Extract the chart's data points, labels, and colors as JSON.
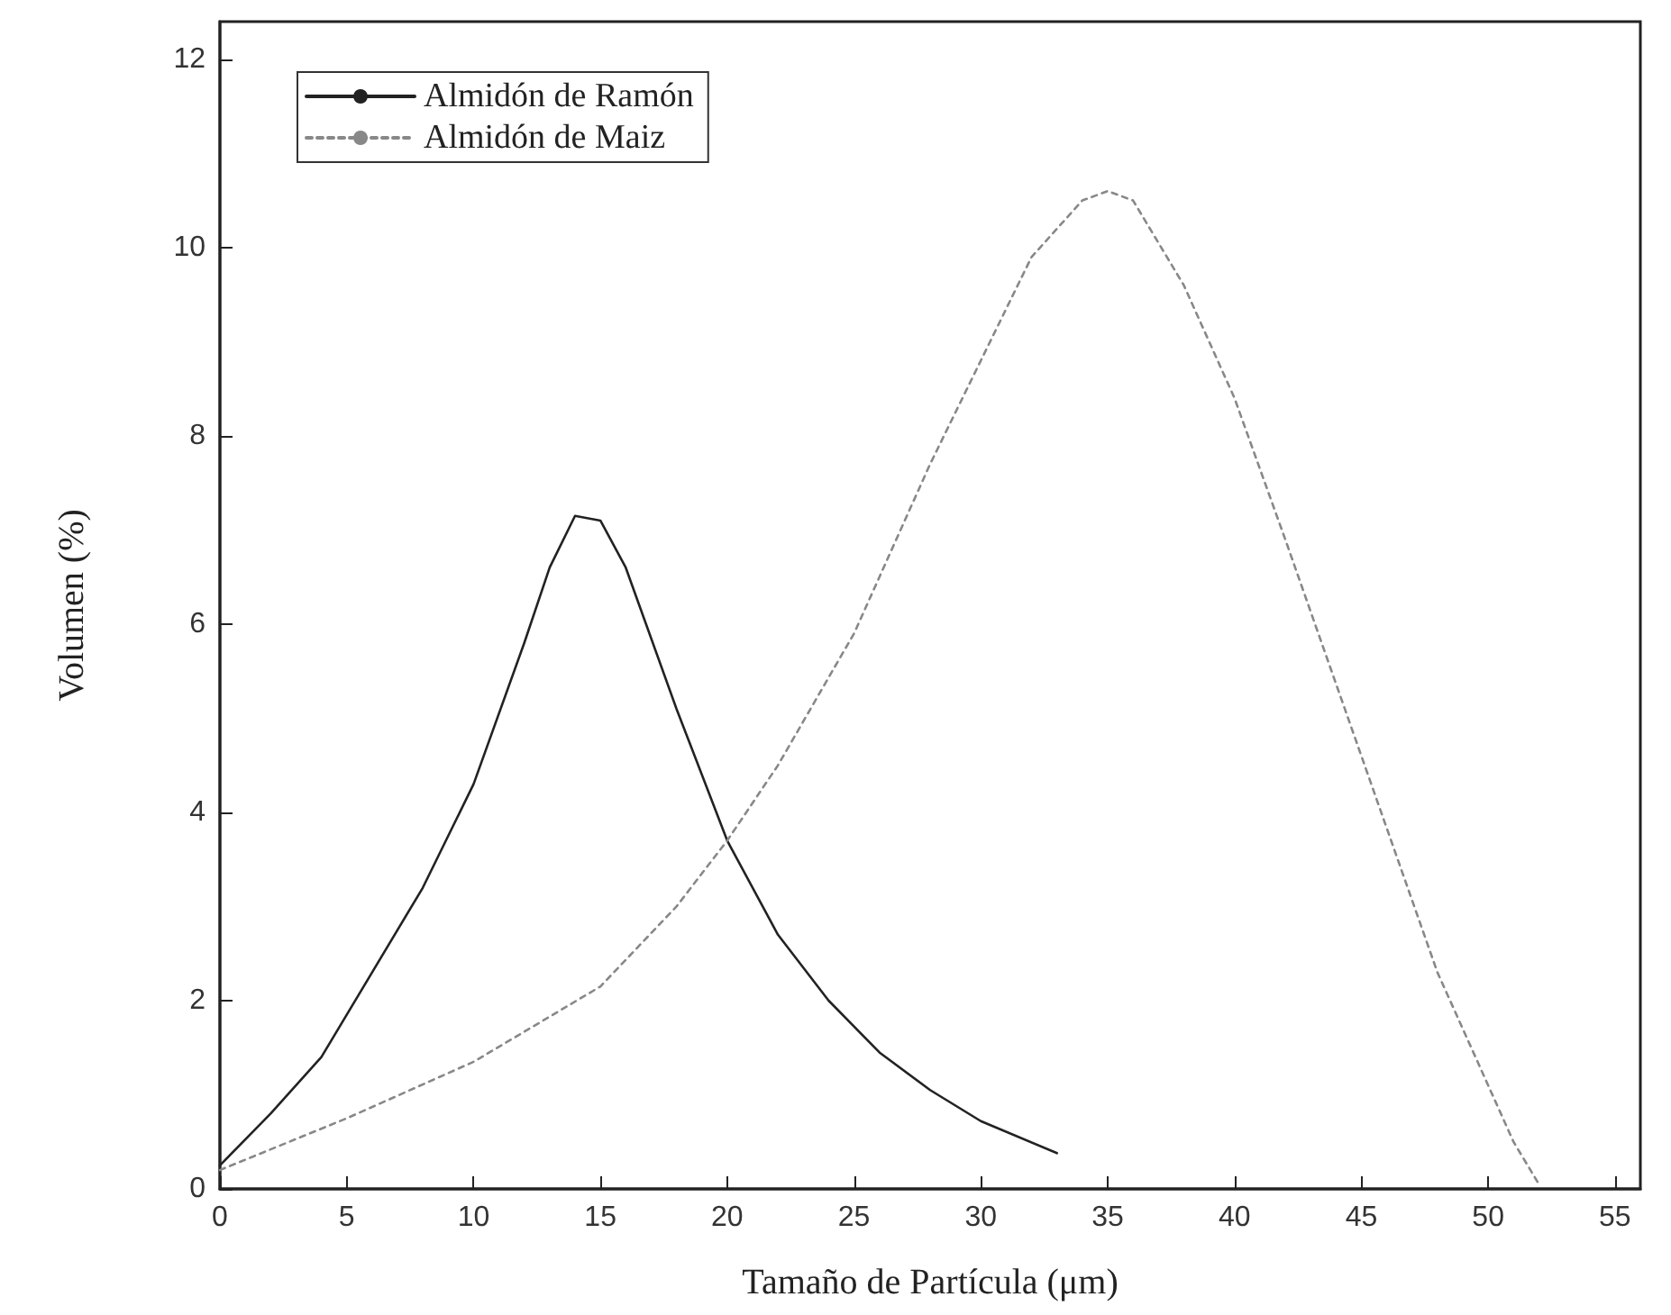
{
  "chart_data": {
    "type": "line",
    "xlabel": "Tamaño de Partícula (μm)",
    "ylabel": "Volumen (%)",
    "xlim": [
      0,
      56
    ],
    "xticks": [
      0,
      5,
      10,
      15,
      20,
      25,
      30,
      35,
      40,
      45,
      50,
      55
    ],
    "ylim": [
      0,
      12.4
    ],
    "yticks": [
      0,
      2,
      4,
      6,
      8,
      10,
      12
    ],
    "grid": false,
    "legend": "top left",
    "marker": "none",
    "series": [
      {
        "name": "Almidón de Ramón",
        "color": "#222222",
        "line_style": "solid",
        "x": [
          0,
          2,
          4,
          6,
          8,
          10,
          12,
          13,
          14,
          15,
          16,
          18,
          20,
          22,
          24,
          26,
          28,
          30,
          33
        ],
        "values": [
          0.25,
          0.8,
          1.4,
          2.3,
          3.2,
          4.3,
          5.8,
          6.6,
          7.15,
          7.1,
          6.6,
          5.1,
          3.7,
          2.7,
          2.0,
          1.45,
          1.05,
          0.72,
          0.38
        ]
      },
      {
        "name": "Almidón de Maiz",
        "color": "#888888",
        "line_style": "dotted",
        "x": [
          0,
          5,
          10,
          15,
          18,
          20,
          22,
          25,
          28,
          30,
          32,
          34,
          35,
          36,
          38,
          40,
          42,
          45,
          48,
          50,
          51,
          52
        ],
        "values": [
          0.2,
          0.75,
          1.35,
          2.15,
          3.0,
          3.7,
          4.5,
          5.9,
          7.7,
          8.8,
          9.9,
          10.5,
          10.6,
          10.5,
          9.6,
          8.4,
          6.9,
          4.6,
          2.3,
          1.1,
          0.5,
          0.05
        ]
      }
    ]
  }
}
